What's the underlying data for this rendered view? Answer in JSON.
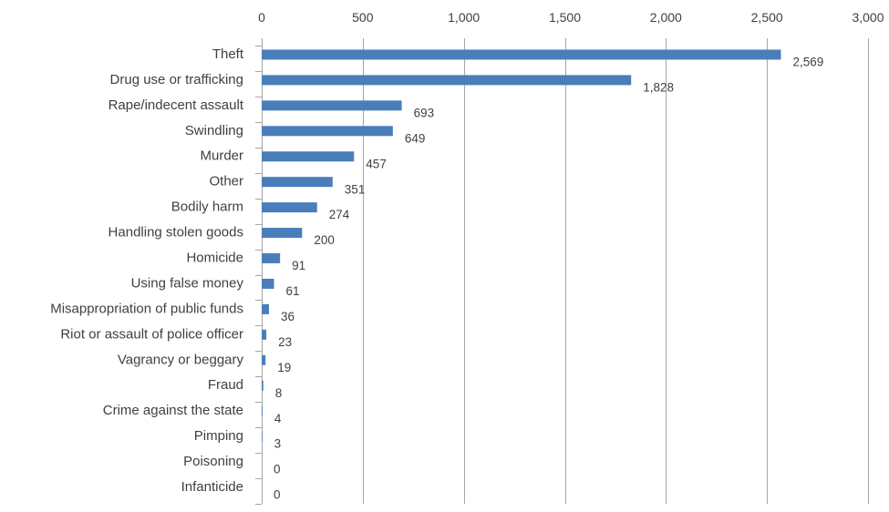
{
  "chart_data": {
    "type": "bar",
    "orientation": "horizontal",
    "title": "",
    "xlabel": "",
    "ylabel": "",
    "xlim": [
      0,
      3000
    ],
    "x_ticks": [
      0,
      500,
      1000,
      1500,
      2000,
      2500,
      3000
    ],
    "x_tick_labels": [
      "0",
      "500",
      "1,000",
      "1,500",
      "2,000",
      "2,500",
      "3,000"
    ],
    "x_axis_position": "top",
    "grid": true,
    "legend": "none",
    "bar_color": "#4a7ebb",
    "categories": [
      "Theft",
      "Drug use or trafficking",
      "Rape/indecent assault",
      "Swindling",
      "Murder",
      "Other",
      "Bodily harm",
      "Handling stolen goods",
      "Homicide",
      "Using false money",
      "Misappropriation of public funds",
      "Riot or assault of police officer",
      "Vagrancy or beggary",
      "Fraud",
      "Crime against the state",
      "Pimping",
      "Poisoning",
      "Infanticide"
    ],
    "values": [
      2569,
      1828,
      693,
      649,
      457,
      351,
      274,
      200,
      91,
      61,
      36,
      23,
      19,
      8,
      4,
      3,
      0,
      0
    ],
    "value_labels": [
      "2,569",
      "1,828",
      "693",
      "649",
      "457",
      "351",
      "274",
      "200",
      "91",
      "61",
      "36",
      "23",
      "19",
      "8",
      "4",
      "3",
      "0",
      "0"
    ]
  }
}
